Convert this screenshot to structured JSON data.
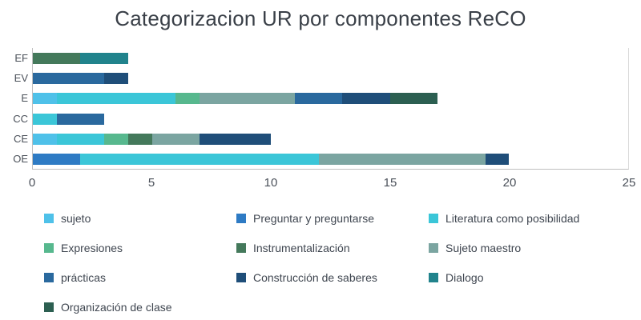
{
  "chart_data": {
    "type": "bar",
    "orientation": "horizontal",
    "stacked": true,
    "title": "Categorizacion UR por componentes ReCO",
    "categories": [
      "EF",
      "EV",
      "E",
      "CC",
      "CE",
      "OE"
    ],
    "category_order": "top-to-bottom",
    "x_ticks": [
      0,
      5,
      10,
      15,
      20,
      25
    ],
    "xlim": [
      0,
      25
    ],
    "grid": false,
    "legend_position": "bottom",
    "series": [
      {
        "name": "sujeto",
        "color": "#4FC1E9",
        "values": [
          0,
          0,
          1,
          0,
          1,
          0
        ]
      },
      {
        "name": "Preguntar y preguntarse",
        "color": "#2E7BC4",
        "values": [
          0,
          0,
          0,
          0,
          0,
          2
        ]
      },
      {
        "name": "Literatura como posibilidad",
        "color": "#3BC6D8",
        "values": [
          0,
          0,
          5,
          1,
          2,
          10
        ]
      },
      {
        "name": "Expresiones",
        "color": "#57B88E",
        "values": [
          0,
          0,
          1,
          0,
          1,
          0
        ]
      },
      {
        "name": "Instrumentalización",
        "color": "#44795B",
        "values": [
          2,
          0,
          0,
          0,
          1,
          0
        ]
      },
      {
        "name": "Sujeto maestro",
        "color": "#7BA5A1",
        "values": [
          0,
          0,
          4,
          0,
          2,
          7
        ]
      },
      {
        "name": "prácticas",
        "color": "#2A699E",
        "values": [
          0,
          3,
          2,
          2,
          0,
          0
        ]
      },
      {
        "name": "Construcción de saberes",
        "color": "#1F4E79",
        "values": [
          0,
          1,
          2,
          0,
          3,
          1
        ]
      },
      {
        "name": "Dialogo",
        "color": "#21838C",
        "values": [
          2,
          0,
          0,
          0,
          0,
          0
        ]
      },
      {
        "name": "Organización de clase",
        "color": "#2C5F51",
        "values": [
          0,
          0,
          2,
          0,
          0,
          0
        ]
      }
    ],
    "totals": {
      "EF": 4,
      "EV": 4,
      "E": 17,
      "CC": 3,
      "CE": 10,
      "OE": 20
    }
  }
}
